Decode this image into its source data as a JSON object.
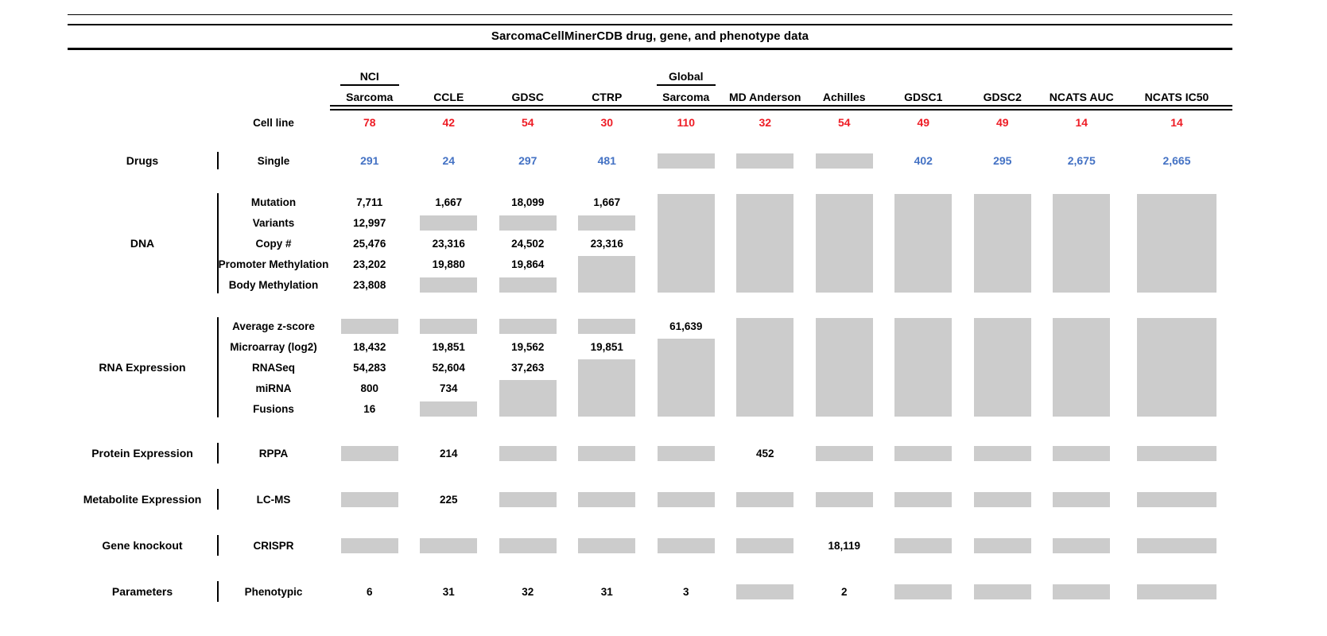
{
  "figure": {
    "title": "SarcomaCellMinerCDB drug, gene, and phenotype data"
  },
  "colors": {
    "cell_line_count": "#ee1c25",
    "drug_count": "#4472c4",
    "missing_box": "#cccccc",
    "text": "#000000"
  },
  "chart_data": {
    "type": "table",
    "title": "SarcomaCellMinerCDB drug, gene, and phenotype data",
    "columns": [
      {
        "top": "NCI",
        "label": "Sarcoma"
      },
      {
        "label": "CCLE"
      },
      {
        "label": "GDSC"
      },
      {
        "label": "CTRP"
      },
      {
        "top": "Global",
        "label": "Sarcoma"
      },
      {
        "label": "MD Anderson"
      },
      {
        "label": "Achilles"
      },
      {
        "label": "GDSC1"
      },
      {
        "label": "GDSC2"
      },
      {
        "label": "NCATS AUC"
      },
      {
        "label": "NCATS IC50"
      }
    ],
    "cell_line": {
      "label": "Cell line",
      "values": [
        "78",
        "42",
        "54",
        "30",
        "110",
        "32",
        "54",
        "49",
        "49",
        "14",
        "14"
      ]
    },
    "row_groups": [
      {
        "group": "Drugs",
        "rows": [
          {
            "label": "Single",
            "color": "blue",
            "values": [
              "291",
              "24",
              "297",
              "481",
              null,
              null,
              null,
              "402",
              "295",
              "2,675",
              "2,665"
            ]
          }
        ],
        "boxes": [
          {
            "col": 4,
            "row": 0,
            "span": 1
          },
          {
            "col": 5,
            "row": 0,
            "span": 1
          },
          {
            "col": 6,
            "row": 0,
            "span": 1
          }
        ]
      },
      {
        "group": "DNA",
        "rows": [
          {
            "label": "Mutation",
            "values": [
              "7,711",
              "1,667",
              "18,099",
              "1,667",
              null,
              null,
              null,
              null,
              null,
              null,
              null
            ]
          },
          {
            "label": "Variants",
            "values": [
              "12,997",
              null,
              null,
              null,
              null,
              null,
              null,
              null,
              null,
              null,
              null
            ]
          },
          {
            "label": "Copy #",
            "values": [
              "25,476",
              "23,316",
              "24,502",
              "23,316",
              null,
              null,
              null,
              null,
              null,
              null,
              null
            ]
          },
          {
            "label": "Promoter Methylation",
            "values": [
              "23,202",
              "19,880",
              "19,864",
              null,
              null,
              null,
              null,
              null,
              null,
              null,
              null
            ]
          },
          {
            "label": "Body Methylation",
            "values": [
              "23,808",
              null,
              null,
              null,
              null,
              null,
              null,
              null,
              null,
              null,
              null
            ]
          }
        ],
        "boxes": [
          {
            "col": 1,
            "row": 1,
            "span": 1
          },
          {
            "col": 2,
            "row": 1,
            "span": 1
          },
          {
            "col": 3,
            "row": 1,
            "span": 1
          },
          {
            "col": 1,
            "row": 4,
            "span": 1
          },
          {
            "col": 2,
            "row": 4,
            "span": 1
          },
          {
            "col": 3,
            "row": 3,
            "span": 2
          },
          {
            "col": 4,
            "row": 0,
            "span": 5
          },
          {
            "col": 5,
            "row": 0,
            "span": 5
          },
          {
            "col": 6,
            "row": 0,
            "span": 5
          },
          {
            "col": 7,
            "row": 0,
            "span": 5
          },
          {
            "col": 8,
            "row": 0,
            "span": 5
          },
          {
            "col": 9,
            "row": 0,
            "span": 5
          },
          {
            "col": 10,
            "row": 0,
            "span": 5
          }
        ]
      },
      {
        "group": "RNA Expression",
        "rows": [
          {
            "label": "Average z-score",
            "values": [
              null,
              null,
              null,
              null,
              "61,639",
              null,
              null,
              null,
              null,
              null,
              null
            ]
          },
          {
            "label": "Microarray (log2)",
            "values": [
              "18,432",
              "19,851",
              "19,562",
              "19,851",
              null,
              null,
              null,
              null,
              null,
              null,
              null
            ]
          },
          {
            "label": "RNASeq",
            "values": [
              "54,283",
              "52,604",
              "37,263",
              null,
              null,
              null,
              null,
              null,
              null,
              null,
              null
            ]
          },
          {
            "label": "miRNA",
            "values": [
              "800",
              "734",
              null,
              null,
              null,
              null,
              null,
              null,
              null,
              null,
              null
            ]
          },
          {
            "label": "Fusions",
            "values": [
              "16",
              null,
              null,
              null,
              null,
              null,
              null,
              null,
              null,
              null,
              null
            ]
          }
        ],
        "boxes": [
          {
            "col": 0,
            "row": 0,
            "span": 1
          },
          {
            "col": 1,
            "row": 0,
            "span": 1
          },
          {
            "col": 2,
            "row": 0,
            "span": 1
          },
          {
            "col": 3,
            "row": 0,
            "span": 1
          },
          {
            "col": 1,
            "row": 4,
            "span": 1
          },
          {
            "col": 2,
            "row": 3,
            "span": 2
          },
          {
            "col": 3,
            "row": 2,
            "span": 3
          },
          {
            "col": 4,
            "row": 1,
            "span": 4
          },
          {
            "col": 5,
            "row": 0,
            "span": 5
          },
          {
            "col": 6,
            "row": 0,
            "span": 5
          },
          {
            "col": 7,
            "row": 0,
            "span": 5
          },
          {
            "col": 8,
            "row": 0,
            "span": 5
          },
          {
            "col": 9,
            "row": 0,
            "span": 5
          },
          {
            "col": 10,
            "row": 0,
            "span": 5
          }
        ]
      },
      {
        "group": "Protein Expression",
        "rows": [
          {
            "label": "RPPA",
            "values": [
              null,
              "214",
              null,
              null,
              null,
              "452",
              null,
              null,
              null,
              null,
              null
            ]
          }
        ],
        "boxes": [
          {
            "col": 0,
            "row": 0,
            "span": 1
          },
          {
            "col": 2,
            "row": 0,
            "span": 1
          },
          {
            "col": 3,
            "row": 0,
            "span": 1
          },
          {
            "col": 4,
            "row": 0,
            "span": 1
          },
          {
            "col": 6,
            "row": 0,
            "span": 1
          },
          {
            "col": 7,
            "row": 0,
            "span": 1
          },
          {
            "col": 8,
            "row": 0,
            "span": 1
          },
          {
            "col": 9,
            "row": 0,
            "span": 1
          },
          {
            "col": 10,
            "row": 0,
            "span": 1
          }
        ]
      },
      {
        "group": "Metabolite Expression",
        "rows": [
          {
            "label": "LC-MS",
            "values": [
              null,
              "225",
              null,
              null,
              null,
              null,
              null,
              null,
              null,
              null,
              null
            ]
          }
        ],
        "boxes": [
          {
            "col": 0,
            "row": 0,
            "span": 1
          },
          {
            "col": 2,
            "row": 0,
            "span": 1
          },
          {
            "col": 3,
            "row": 0,
            "span": 1
          },
          {
            "col": 4,
            "row": 0,
            "span": 1
          },
          {
            "col": 5,
            "row": 0,
            "span": 1
          },
          {
            "col": 6,
            "row": 0,
            "span": 1
          },
          {
            "col": 7,
            "row": 0,
            "span": 1
          },
          {
            "col": 8,
            "row": 0,
            "span": 1
          },
          {
            "col": 9,
            "row": 0,
            "span": 1
          },
          {
            "col": 10,
            "row": 0,
            "span": 1
          }
        ]
      },
      {
        "group": "Gene knockout",
        "rows": [
          {
            "label": "CRISPR",
            "values": [
              null,
              null,
              null,
              null,
              null,
              null,
              "18,119",
              null,
              null,
              null,
              null
            ]
          }
        ],
        "boxes": [
          {
            "col": 0,
            "row": 0,
            "span": 1
          },
          {
            "col": 1,
            "row": 0,
            "span": 1
          },
          {
            "col": 2,
            "row": 0,
            "span": 1
          },
          {
            "col": 3,
            "row": 0,
            "span": 1
          },
          {
            "col": 4,
            "row": 0,
            "span": 1
          },
          {
            "col": 5,
            "row": 0,
            "span": 1
          },
          {
            "col": 7,
            "row": 0,
            "span": 1
          },
          {
            "col": 8,
            "row": 0,
            "span": 1
          },
          {
            "col": 9,
            "row": 0,
            "span": 1
          },
          {
            "col": 10,
            "row": 0,
            "span": 1
          }
        ]
      },
      {
        "group": "Parameters",
        "rows": [
          {
            "label": "Phenotypic",
            "values": [
              "6",
              "31",
              "32",
              "31",
              "3",
              null,
              "2",
              null,
              null,
              null,
              null
            ]
          }
        ],
        "boxes": [
          {
            "col": 5,
            "row": 0,
            "span": 1
          },
          {
            "col": 7,
            "row": 0,
            "span": 1
          },
          {
            "col": 8,
            "row": 0,
            "span": 1
          },
          {
            "col": 9,
            "row": 0,
            "span": 1
          },
          {
            "col": 10,
            "row": 0,
            "span": 1
          }
        ]
      }
    ]
  }
}
